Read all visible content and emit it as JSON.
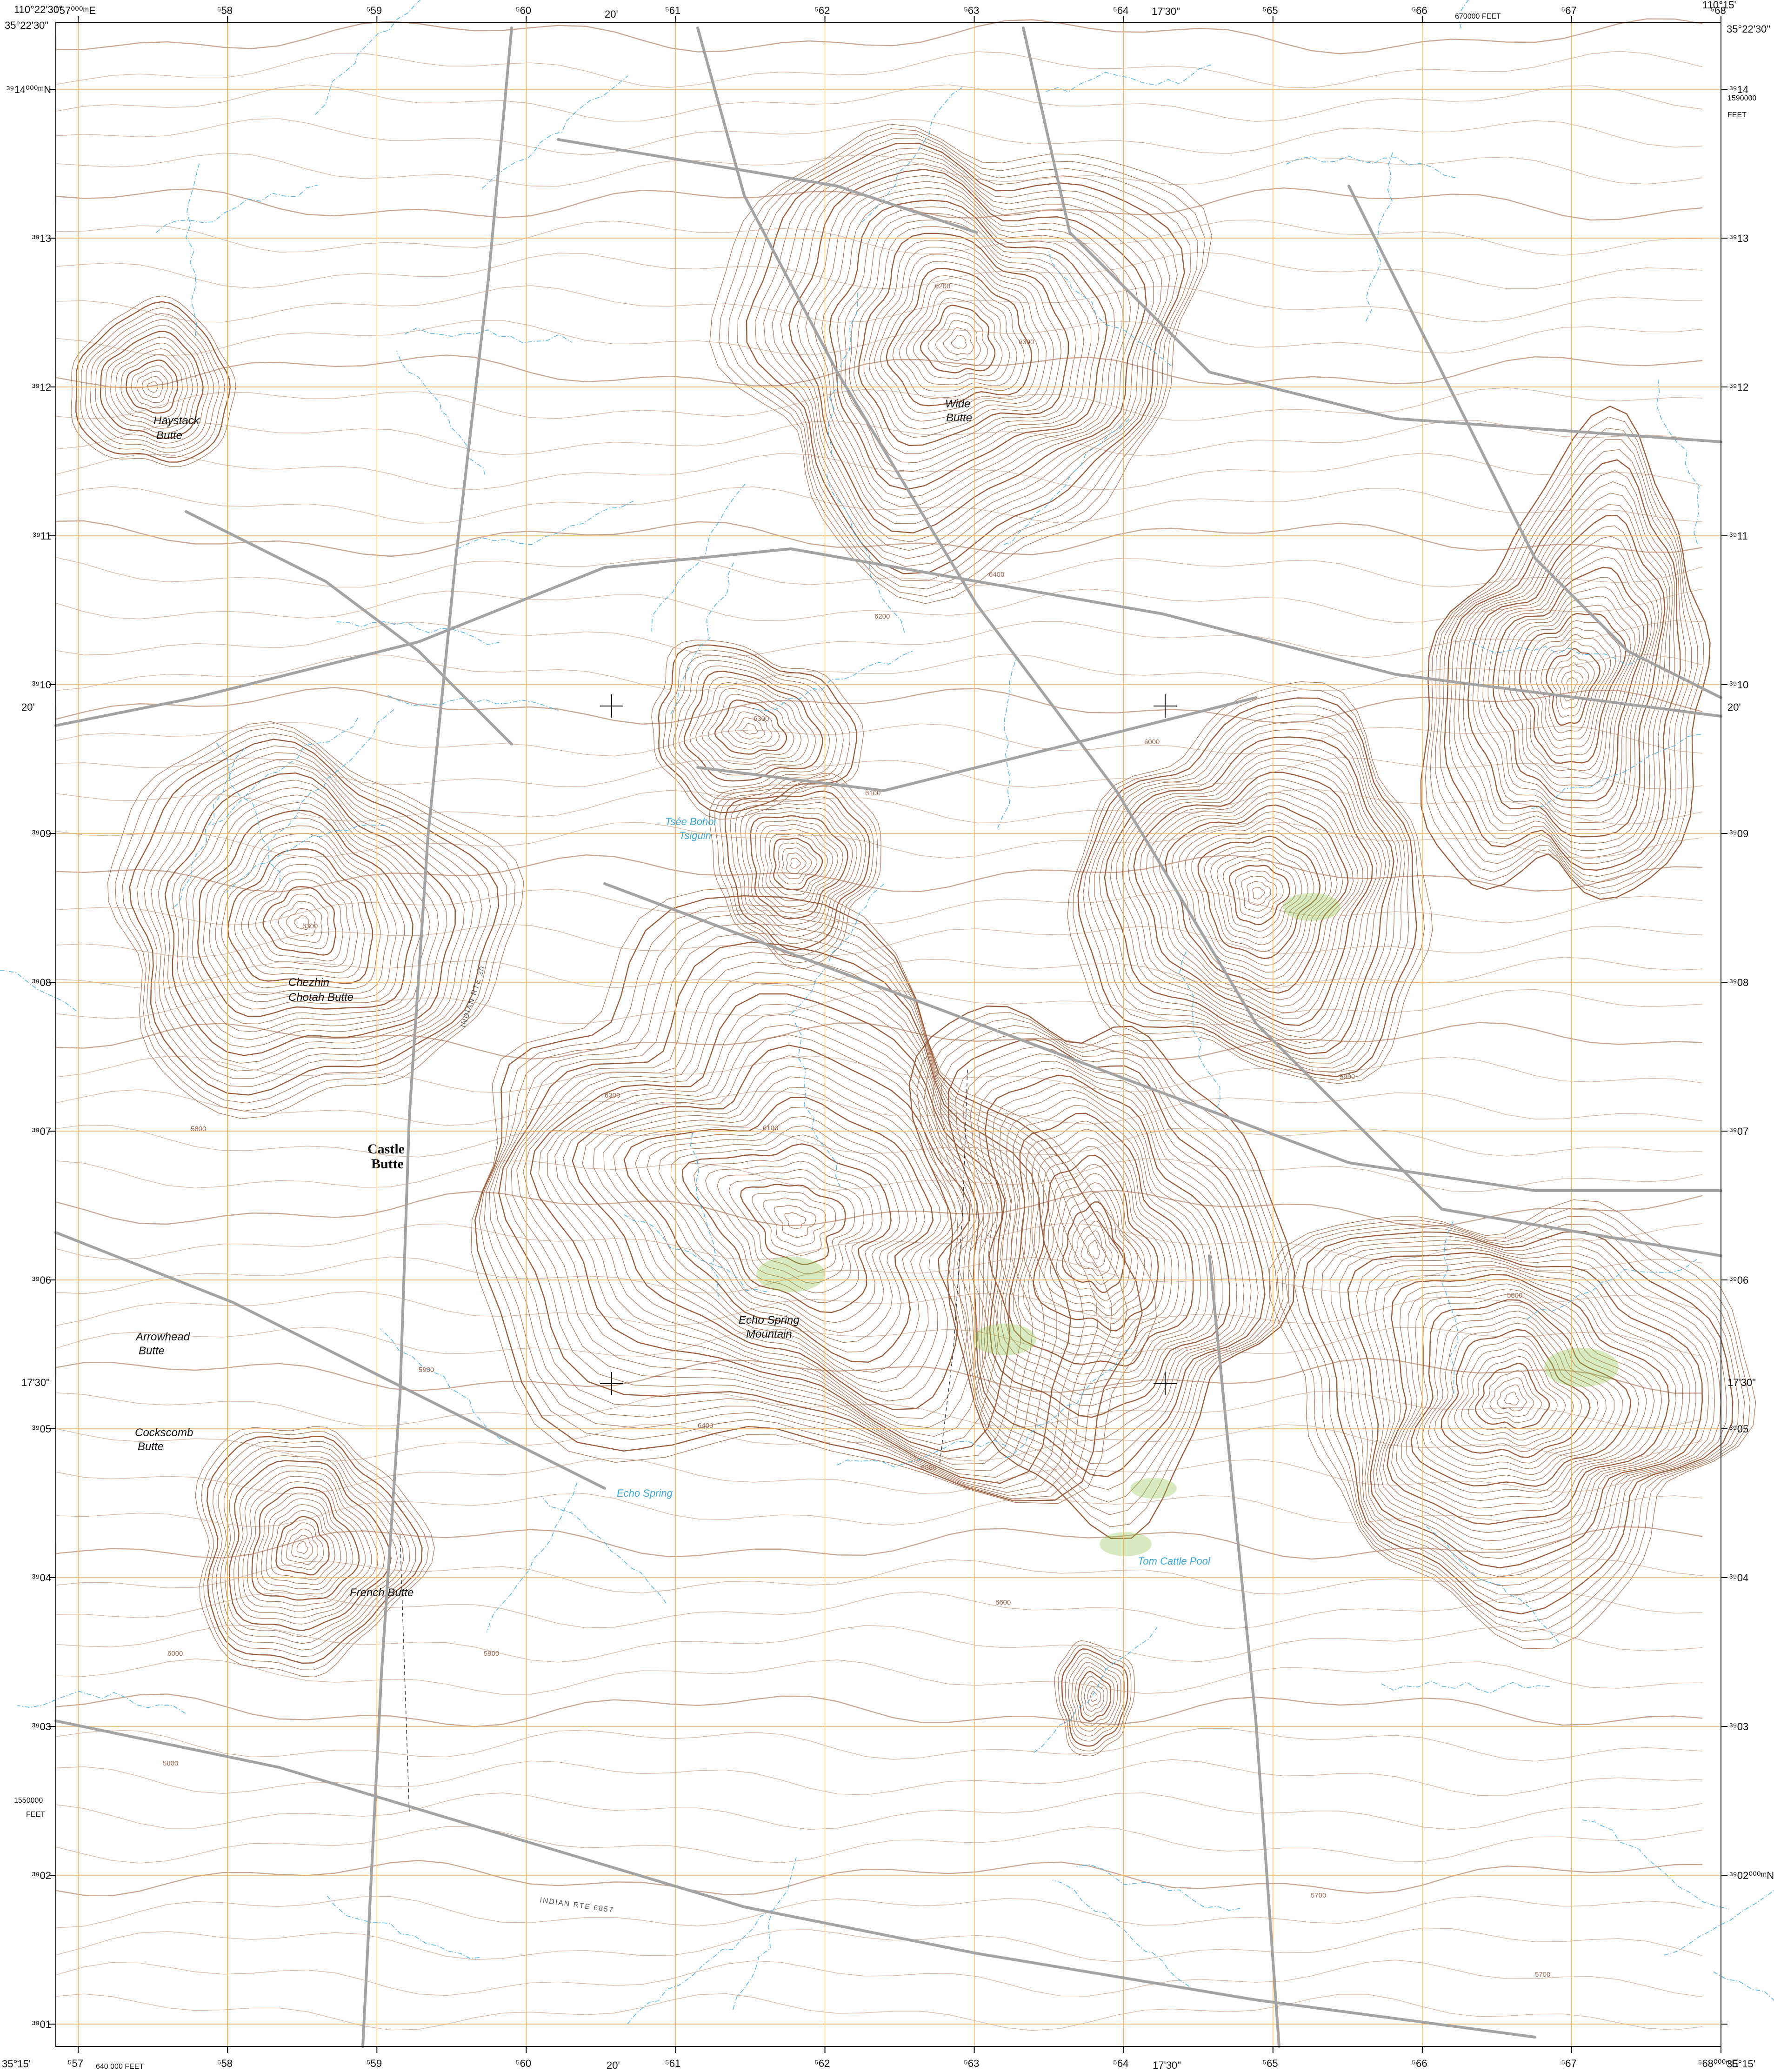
{
  "corners": {
    "top_left_lon": "110°22'30\"",
    "top_left_lat": "35°22'30\"",
    "top_right_lon": "110°15'",
    "top_right_lat": "35°22'30\"",
    "bottom_left_lat": "35°15'",
    "bottom_right_lat": "35°15'"
  },
  "grid": {
    "top_x_labels": [
      "⁵57⁰⁰⁰ᵐE",
      "⁵58",
      "⁵59",
      "⁵60",
      "⁵61",
      "⁵62",
      "⁵63",
      "⁵64",
      "⁵65",
      "⁵66",
      "⁵67",
      "⁵68"
    ],
    "bottom_x_labels": [
      "⁵57",
      "⁵58",
      "⁵59",
      "⁵60",
      "⁵61",
      "⁵62",
      "⁵63",
      "⁵64",
      "⁵65",
      "⁵66",
      "⁵67",
      "⁵68⁰⁰⁰ᵐE"
    ],
    "left_y_labels": [
      "³⁹14⁰⁰⁰ᵐN",
      "³⁹13",
      "³⁹12",
      "³⁹11",
      "³⁹10",
      "³⁹09",
      "³⁹08",
      "³⁹07",
      "³⁹06",
      "³⁹05",
      "³⁹04",
      "³⁹03",
      "³⁹02",
      "³⁹01"
    ],
    "right_y_labels": [
      "³⁹14",
      "³⁹13",
      "³⁹12",
      "³⁹11",
      "³⁹10",
      "³⁹09",
      "³⁹08",
      "³⁹07",
      "³⁹06",
      "³⁹05",
      "³⁹04",
      "³⁹03",
      "³⁹02⁰⁰⁰ᵐN"
    ]
  },
  "graticule": {
    "top_mid_1": "20'",
    "top_mid_2": "17'30\"",
    "bottom_mid_1": "20'",
    "bottom_mid_2": "17'30\"",
    "left_mid_1": "20'",
    "left_mid_2": "17'30\"",
    "right_mid_1": "20'",
    "right_mid_2": "17'30\""
  },
  "state_plane": {
    "top_feet": "670000 FEET",
    "right_feet_value": "1590000",
    "right_feet_unit": "FEET",
    "left_feet_value": "1550000",
    "left_feet_unit": "FEET",
    "bottom_feet": "640 000 FEET"
  },
  "features": {
    "haystack_1": "Haystack",
    "haystack_2": "Butte",
    "wide_1": "Wide",
    "wide_2": "Butte",
    "chezhin_1": "Chezhin",
    "chezhin_2": "Chotah Butte",
    "castle_1": "Castle",
    "castle_2": "Butte",
    "arrowhead_1": "Arrowhead",
    "arrowhead_2": "Butte",
    "cockscomb_1": "Cockscomb",
    "cockscomb_2": "Butte",
    "french": "French Butte",
    "echo_1": "Echo Spring",
    "echo_2": "Mountain"
  },
  "water": {
    "tsaile_1": "Tsée Bohoi",
    "tsaile_2": "Tsiguin",
    "echo_spring": "Echo Spring",
    "tom_cattle": "Tom Cattle Pool"
  },
  "routes": {
    "rte_20": "INDIAN RTE 20",
    "rte_6857": "INDIAN RTE 6857"
  },
  "elevations": {
    "e1": "6200",
    "e2": "6300",
    "e3": "6400",
    "e4": "6000",
    "e5": "5900",
    "e6": "6100",
    "e7": "5800",
    "e8": "5700",
    "e9": "6500",
    "e10": "6600"
  },
  "colors": {
    "contour": "#b07a5a",
    "contour_index": "#9a5e3e",
    "grid": "#f4b45a",
    "road": "#a3a3a3",
    "water": "#57b6e3",
    "vegetation": "#8cc44a"
  },
  "relief_centers": {
    "haystack": [
      557.5,
      3912.0
    ],
    "wide": [
      562.9,
      3912.3
    ],
    "chezhin": [
      558.5,
      3908.4
    ],
    "peak_a": [
      561.5,
      3909.7
    ],
    "peak_b": [
      561.8,
      3908.8
    ],
    "east_a": [
      564.9,
      3908.6
    ],
    "east_b": [
      567.0,
      3910.0
    ],
    "echo": [
      561.8,
      3906.4
    ],
    "echo_e": [
      563.8,
      3906.2
    ],
    "french": [
      558.5,
      3904.2
    ],
    "se": [
      566.6,
      3905.2
    ],
    "knob": [
      563.8,
      3903.2
    ]
  }
}
